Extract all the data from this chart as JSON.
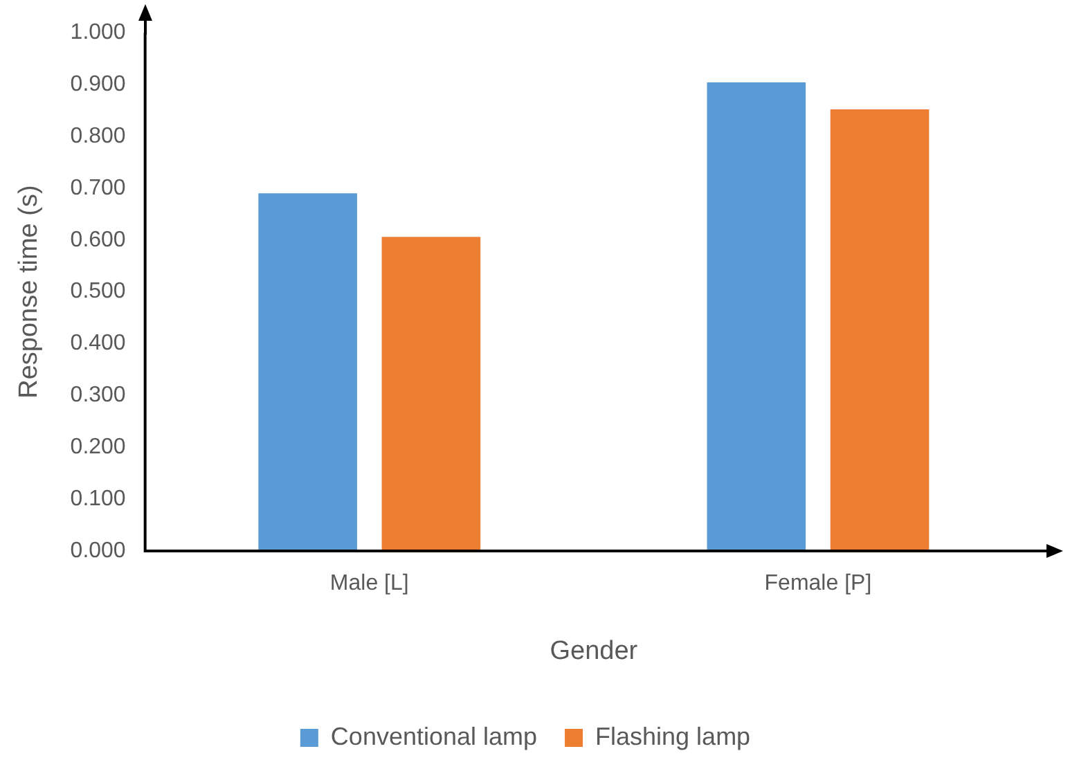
{
  "chart_data": {
    "type": "bar",
    "xlabel": "Gender",
    "ylabel": "Response time (s)",
    "categories": [
      "Male [L]",
      "Female [P]"
    ],
    "series": [
      {
        "name": "Conventional lamp",
        "color": "#5b9bd5",
        "values": [
          0.69,
          0.904
        ]
      },
      {
        "name": "Flashing lamp",
        "color": "#ed7d31",
        "values": [
          0.606,
          0.852
        ]
      }
    ],
    "ylim": [
      0,
      1
    ],
    "yticks": [
      {
        "value": 0,
        "label": "0.000"
      },
      {
        "value": 0.1,
        "label": "0.100"
      },
      {
        "value": 0.2,
        "label": "0.200"
      },
      {
        "value": 0.3,
        "label": "0.300"
      },
      {
        "value": 0.4,
        "label": "0.400"
      },
      {
        "value": 0.5,
        "label": "0.500"
      },
      {
        "value": 0.6,
        "label": "0.600"
      },
      {
        "value": 0.7,
        "label": "0.700"
      },
      {
        "value": 0.8,
        "label": "0.800"
      },
      {
        "value": 0.9,
        "label": "0.900"
      },
      {
        "value": 1,
        "label": "1.000"
      }
    ],
    "grid": false,
    "legend": "bottom"
  }
}
